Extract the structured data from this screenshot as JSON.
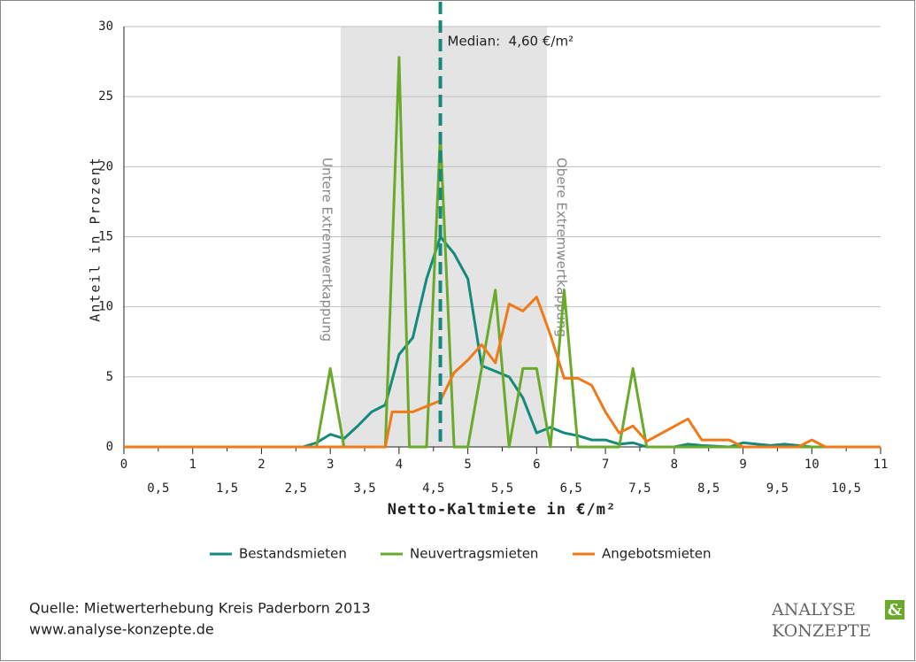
{
  "chart_data": {
    "type": "line",
    "y_label": "Anteil in Prozent",
    "x_label": "Netto-Kaltmiete in €/m²",
    "xlim": [
      0,
      11
    ],
    "ylim": [
      0,
      30
    ],
    "yticks": [
      0,
      5,
      10,
      15,
      20,
      25,
      30
    ],
    "xticks": [
      0,
      1,
      2,
      3,
      4,
      5,
      6,
      7,
      8,
      9,
      10,
      11
    ],
    "xticks_minor": [
      {
        "value": 0.5,
        "label": "0,5"
      },
      {
        "value": 1.5,
        "label": "1,5"
      },
      {
        "value": 2.5,
        "label": "2,5"
      },
      {
        "value": 3.5,
        "label": "3,5"
      },
      {
        "value": 4.5,
        "label": "4,5"
      },
      {
        "value": 5.5,
        "label": "5,5"
      },
      {
        "value": 6.5,
        "label": "6,5"
      },
      {
        "value": 7.5,
        "label": "7,5"
      },
      {
        "value": 8.5,
        "label": "8,5"
      },
      {
        "value": 9.5,
        "label": "9,5"
      },
      {
        "value": 10.5,
        "label": "10,5"
      }
    ],
    "grid": true,
    "median": {
      "value": 4.6,
      "label": "Median:  4,60 €/m²",
      "color": "#138a7a"
    },
    "caps": [
      {
        "value": 3.15,
        "label": "Untere Extremwertkappung"
      },
      {
        "value": 6.15,
        "label": "Obere Extremwertkappung"
      }
    ],
    "cap_color": "#e4e4e4",
    "series": [
      {
        "name": "Bestandsmieten",
        "color": "#138a7a",
        "x": [
          0,
          2.6,
          2.8,
          3.0,
          3.2,
          3.4,
          3.6,
          3.8,
          4.0,
          4.2,
          4.4,
          4.6,
          4.8,
          5.0,
          5.2,
          5.4,
          5.6,
          5.8,
          6.0,
          6.2,
          6.4,
          6.6,
          6.8,
          7.0,
          7.2,
          7.4,
          7.6,
          8.0,
          8.2,
          8.4,
          8.8,
          9.0,
          9.4,
          9.6,
          9.8,
          10.0,
          11
        ],
        "values": [
          0,
          0,
          0.3,
          0.9,
          0.6,
          1.5,
          2.5,
          3.0,
          6.6,
          7.8,
          12,
          15,
          13.8,
          12,
          5.8,
          5.4,
          5.0,
          3.5,
          1.0,
          1.4,
          1.0,
          0.8,
          0.5,
          0.5,
          0.2,
          0.3,
          0,
          0,
          0.2,
          0.1,
          0,
          0.3,
          0.1,
          0.2,
          0.1,
          0,
          0
        ]
      },
      {
        "name": "Neuvertragsmieten",
        "color": "#6aaa2a",
        "x": [
          0,
          2.8,
          3.0,
          3.2,
          3.8,
          4.0,
          4.15,
          4.4,
          4.6,
          4.8,
          5.0,
          5.4,
          5.6,
          5.8,
          6.0,
          6.2,
          6.4,
          6.6,
          7.2,
          7.4,
          7.6,
          11
        ],
        "values": [
          0,
          0,
          5.6,
          0,
          0,
          27.8,
          0,
          0,
          22.3,
          0,
          0,
          11.2,
          0,
          5.6,
          5.6,
          0,
          11.2,
          0,
          0,
          5.6,
          0,
          0
        ]
      },
      {
        "name": "Angebotsmieten",
        "color": "#f07a1a",
        "x": [
          0,
          3.8,
          3.9,
          4.2,
          4.6,
          4.8,
          5.0,
          5.2,
          5.4,
          5.6,
          5.8,
          6.0,
          6.2,
          6.4,
          6.6,
          6.8,
          7.0,
          7.2,
          7.4,
          7.6,
          8.2,
          8.4,
          8.8,
          9.0,
          9.8,
          10.0,
          10.2,
          11
        ],
        "values": [
          0,
          0,
          2.5,
          2.5,
          3.3,
          5.3,
          6.2,
          7.3,
          6.0,
          10.2,
          9.7,
          10.7,
          8.0,
          4.9,
          4.9,
          4.4,
          2.5,
          1.0,
          1.5,
          0.4,
          2.0,
          0.5,
          0.5,
          0,
          0,
          0.5,
          0,
          0
        ]
      }
    ]
  },
  "footer": {
    "source": "Quelle: Mietwerterhebung Kreis Paderborn 2013",
    "url": "www.analyse-konzepte.de",
    "logo_top": "ANALYSE",
    "logo_amp": "&",
    "logo_bottom": "KONZEPTE"
  }
}
